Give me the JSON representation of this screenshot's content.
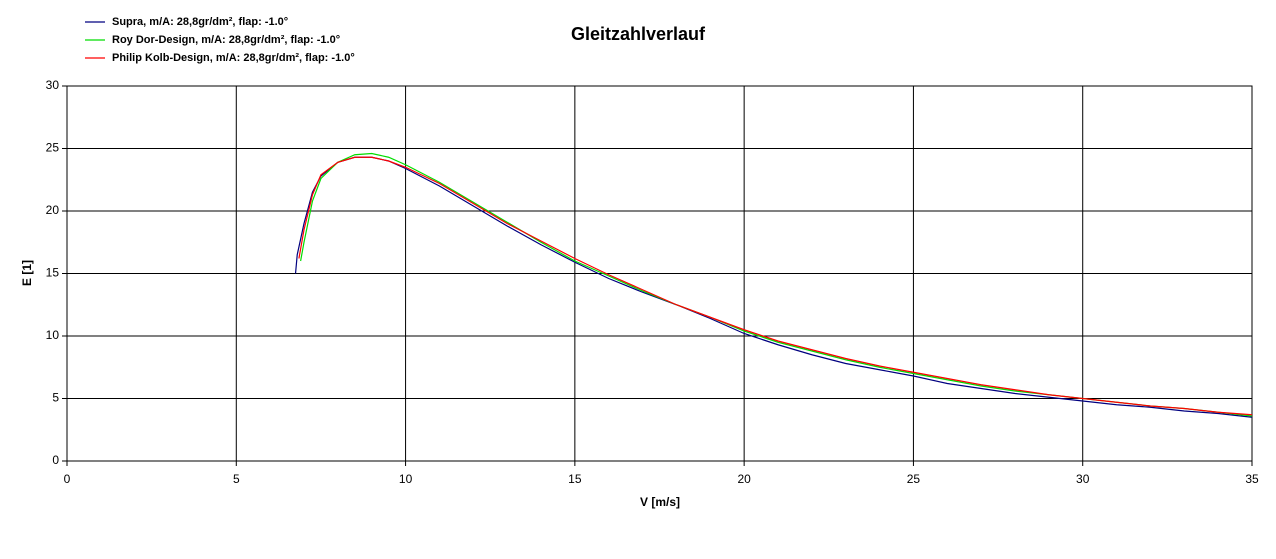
{
  "chart_data": {
    "type": "line",
    "title": "Gleitzahlverlauf",
    "x_label": "V [m/s]",
    "y_label": "E [1]",
    "xlim": [
      0,
      35
    ],
    "xticks": [
      0,
      5,
      10,
      15,
      20,
      25,
      30,
      35
    ],
    "ylim": [
      0,
      30
    ],
    "yticks": [
      0,
      5,
      10,
      15,
      20,
      25,
      30
    ],
    "grid": true,
    "legend": "top-left",
    "series": [
      {
        "name": "Supra, m/A: 28,8gr/dm², flap: -1.0°",
        "color": "#000080",
        "x": [
          6.75,
          6.8,
          7,
          7.25,
          7.5,
          8,
          8.5,
          9,
          9.5,
          10,
          11,
          12,
          13,
          14,
          15,
          16,
          17,
          18,
          19,
          20,
          21,
          22,
          23,
          24,
          25,
          26,
          27,
          28,
          29,
          30,
          31,
          32,
          33,
          34,
          35
        ],
        "values": [
          15,
          16.5,
          19,
          21.5,
          22.8,
          23.9,
          24.3,
          24.3,
          24.0,
          23.4,
          22.0,
          20.4,
          18.8,
          17.3,
          15.9,
          14.6,
          13.5,
          12.5,
          11.4,
          10.2,
          9.3,
          8.5,
          7.8,
          7.3,
          6.8,
          6.2,
          5.8,
          5.4,
          5.1,
          4.8,
          4.5,
          4.3,
          4.0,
          3.8,
          3.5
        ]
      },
      {
        "name": "Roy Dor-Design, m/A: 28,8gr/dm², flap: -1.0°",
        "color": "#00dd00",
        "x": [
          6.9,
          7,
          7.25,
          7.5,
          8,
          8.5,
          9,
          9.5,
          10,
          11,
          12,
          13,
          14,
          15,
          16,
          17,
          18,
          19,
          20,
          21,
          22,
          23,
          24,
          25,
          26,
          27,
          28,
          29,
          30,
          31,
          32,
          33,
          34,
          35
        ],
        "values": [
          16,
          17.5,
          20.8,
          22.6,
          23.9,
          24.5,
          24.6,
          24.3,
          23.7,
          22.3,
          20.7,
          19.1,
          17.5,
          16.0,
          14.8,
          13.6,
          12.5,
          11.5,
          10.4,
          9.5,
          8.8,
          8.1,
          7.5,
          7.0,
          6.5,
          6.0,
          5.6,
          5.3,
          5.0,
          4.7,
          4.4,
          4.2,
          3.9,
          3.6
        ]
      },
      {
        "name": "Philip Kolb-Design, m/A: 28,8gr/dm², flap:  -1.0°",
        "color": "#ff0000",
        "x": [
          6.85,
          7,
          7.25,
          7.5,
          8,
          8.5,
          9,
          9.5,
          10,
          11,
          12,
          13,
          14,
          15,
          16,
          17,
          18,
          19,
          20,
          21,
          22,
          23,
          24,
          25,
          26,
          27,
          28,
          29,
          30,
          31,
          32,
          33,
          34,
          35
        ],
        "values": [
          16.2,
          18.5,
          21.3,
          22.9,
          23.9,
          24.3,
          24.3,
          24.0,
          23.5,
          22.2,
          20.6,
          19.0,
          17.6,
          16.2,
          14.9,
          13.7,
          12.5,
          11.5,
          10.5,
          9.6,
          8.9,
          8.2,
          7.6,
          7.1,
          6.6,
          6.1,
          5.7,
          5.3,
          5.0,
          4.7,
          4.4,
          4.2,
          3.9,
          3.7
        ]
      }
    ]
  }
}
